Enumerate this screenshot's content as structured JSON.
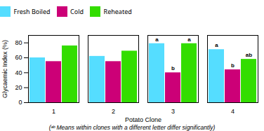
{
  "chart_data": {
    "type": "bar",
    "categories": [
      "1",
      "2",
      "3",
      "4"
    ],
    "series": [
      {
        "name": "Fresh Boiled",
        "color": "#55DDFF",
        "values": [
          60,
          62,
          79,
          71
        ]
      },
      {
        "name": "Cold",
        "color": "#CC0077",
        "values": [
          55,
          55,
          40,
          44
        ]
      },
      {
        "name": "Reheated",
        "color": "#33DD00",
        "values": [
          76,
          69,
          79,
          58
        ]
      }
    ],
    "xlabel": "Potato Clone",
    "ylabel": "Glycaemic Index (%)",
    "ylim": [
      0,
      90
    ],
    "yticks": [
      0,
      20,
      40,
      60,
      80
    ],
    "legend": "top",
    "annotations": [
      {
        "category": "3",
        "series": "Fresh Boiled",
        "text": "a"
      },
      {
        "category": "3",
        "series": "Cold",
        "text": "b"
      },
      {
        "category": "3",
        "series": "Reheated",
        "text": "a"
      },
      {
        "category": "4",
        "series": "Fresh Boiled",
        "text": "a"
      },
      {
        "category": "4",
        "series": "Cold",
        "text": "b"
      },
      {
        "category": "4",
        "series": "Reheated",
        "text": "ab"
      }
    ],
    "caption": "(ᵃᵇ Means within clones with a different letter differ significantly)"
  }
}
